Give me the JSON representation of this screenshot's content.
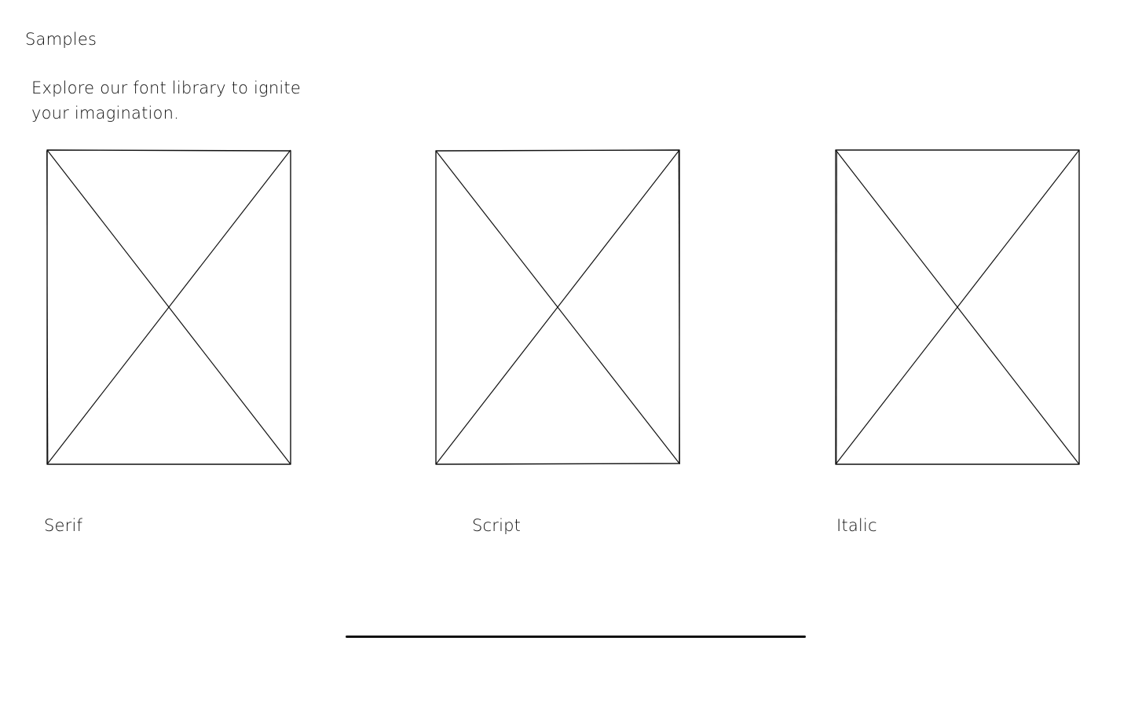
{
  "section": {
    "title": "Samples",
    "intro": "Explore our font library to ignite your imagination."
  },
  "cards": [
    {
      "label": "Serif"
    },
    {
      "label": "Script"
    },
    {
      "label": "Italic"
    }
  ],
  "colors": {
    "stroke": "#111111",
    "background": "#ffffff"
  }
}
